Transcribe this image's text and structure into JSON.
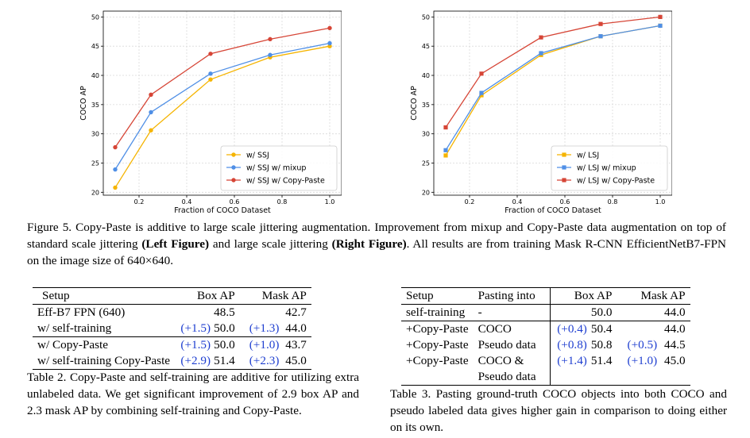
{
  "chart_data": [
    {
      "type": "line",
      "title": "",
      "xlabel": "Fraction of COCO Dataset",
      "ylabel": "COCO AP",
      "xlim": [
        0.05,
        1.05
      ],
      "ylim": [
        19.5,
        51
      ],
      "xticks": [
        0.2,
        0.4,
        0.6,
        0.8,
        1.0
      ],
      "xtick_labels": [
        "0.2",
        "0.4",
        "0.6",
        "0.8",
        "1.0"
      ],
      "yticks": [
        20,
        25,
        30,
        35,
        40,
        45,
        50
      ],
      "ytick_labels": [
        "20",
        "25",
        "30",
        "35",
        "40",
        "45",
        "50"
      ],
      "grid": true,
      "legend": "lower-right",
      "marker": "circle",
      "x": [
        0.1,
        0.25,
        0.5,
        0.75,
        1.0
      ],
      "series": [
        {
          "name": "w/ SSJ",
          "color": "#f5b400",
          "values": [
            20.8,
            30.6,
            39.3,
            43.1,
            45.0
          ]
        },
        {
          "name": "w/ SSJ w/ mixup",
          "color": "#4f8fe6",
          "values": [
            23.9,
            33.7,
            40.3,
            43.5,
            45.5
          ]
        },
        {
          "name": "w/ SSJ w/ Copy-Paste",
          "color": "#d64536",
          "values": [
            27.7,
            36.7,
            43.7,
            46.2,
            48.1
          ]
        }
      ]
    },
    {
      "type": "line",
      "title": "",
      "xlabel": "Fraction of COCO Dataset",
      "ylabel": "COCO AP",
      "xlim": [
        0.05,
        1.05
      ],
      "ylim": [
        19.5,
        51
      ],
      "xticks": [
        0.2,
        0.4,
        0.6,
        0.8,
        1.0
      ],
      "xtick_labels": [
        "0.2",
        "0.4",
        "0.6",
        "0.8",
        "1.0"
      ],
      "yticks": [
        20,
        25,
        30,
        35,
        40,
        45,
        50
      ],
      "ytick_labels": [
        "20",
        "25",
        "30",
        "35",
        "40",
        "45",
        "50"
      ],
      "grid": true,
      "legend": "lower-right",
      "marker": "square",
      "x": [
        0.1,
        0.25,
        0.5,
        0.75,
        1.0
      ],
      "series": [
        {
          "name": "w/ LSJ",
          "color": "#f5b400",
          "values": [
            26.3,
            36.6,
            43.5,
            46.7,
            48.5
          ]
        },
        {
          "name": "w/ LSJ w/ mixup",
          "color": "#4f8fe6",
          "values": [
            27.2,
            37.0,
            43.8,
            46.7,
            48.5
          ]
        },
        {
          "name": "w/ LSJ w/ Copy-Paste",
          "color": "#d64536",
          "values": [
            31.1,
            40.3,
            46.5,
            48.8,
            50.0
          ]
        }
      ]
    }
  ],
  "figure5": {
    "label": "Figure 5. ",
    "text1": "Copy-Paste is additive to large scale jittering augmentation. Improvement from mixup and Copy-Paste data augmentation on top of standard scale jittering ",
    "bold1": "(Left Figure)",
    "text2": " and large scale jittering ",
    "bold2": "(Right Figure)",
    "text3": ". All results are from training Mask R-CNN EfficientNetB7-FPN on the image size of 640×640."
  },
  "table2": {
    "headers": {
      "setup": "Setup",
      "box": "Box AP",
      "mask": "Mask AP"
    },
    "rows": [
      {
        "setup": "Eff-B7 FPN (640)",
        "box_delta": "",
        "box": "48.5",
        "mask_delta": "",
        "mask": "42.7"
      },
      {
        "setup": "w/ self-training",
        "box_delta": "(+1.5)",
        "box": "50.0",
        "mask_delta": "(+1.3)",
        "mask": "44.0"
      },
      {
        "setup": "w/ Copy-Paste",
        "box_delta": "(+1.5)",
        "box": "50.0",
        "mask_delta": "(+1.0)",
        "mask": "43.7"
      },
      {
        "setup": "w/ self-training Copy-Paste",
        "box_delta": "(+2.9)",
        "box": "51.4",
        "mask_delta": "(+2.3)",
        "mask": "45.0"
      }
    ],
    "caption": "Table 2. Copy-Paste and self-training are additive for utilizing extra unlabeled data. We get significant improvement of 2.9 box AP and 2.3 mask AP by combining self-training and Copy-Paste."
  },
  "table3": {
    "headers": {
      "setup": "Setup",
      "pasting": "Pasting into",
      "box": "Box AP",
      "mask": "Mask AP"
    },
    "rows": [
      {
        "setup": "self-training",
        "pasting": "-",
        "box_delta": "",
        "box": "50.0",
        "mask_delta": "",
        "mask": "44.0"
      },
      {
        "setup": "+Copy-Paste",
        "pasting": "COCO",
        "box_delta": "(+0.4)",
        "box": "50.4",
        "mask_delta": "",
        "mask": "44.0"
      },
      {
        "setup": "+Copy-Paste",
        "pasting": "Pseudo data",
        "box_delta": "(+0.8)",
        "box": "50.8",
        "mask_delta": "(+0.5)",
        "mask": "44.5"
      },
      {
        "setup": "+Copy-Paste",
        "pasting": "COCO &",
        "pasting2": "Pseudo data",
        "box_delta": "(+1.4)",
        "box": "51.4",
        "mask_delta": "(+1.0)",
        "mask": "45.0"
      }
    ],
    "caption": "Table 3. Pasting ground-truth COCO objects into both COCO and pseudo labeled data gives higher gain in comparison to doing either on its own."
  }
}
